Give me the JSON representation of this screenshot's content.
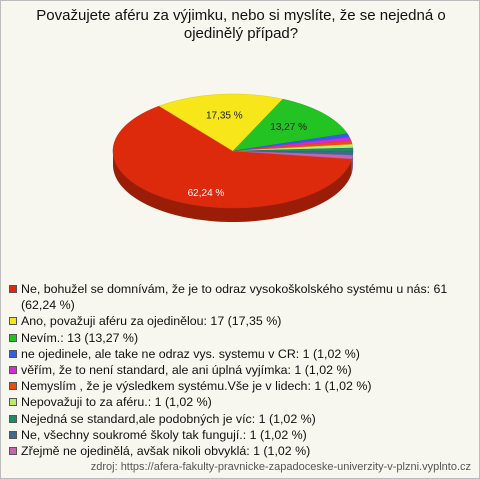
{
  "chart_data": {
    "type": "pie",
    "title": "Považujete aféru za výjimku, nebo si myslíte, že se nejedná o ojedinělý případ?",
    "categories": [
      "Ne, bohužel se domnívám, že je to odraz vysokoškolského systému u nás: 61 (62,24 %)",
      "Ano, považuji aféru za ojedinělou: 17 (17,35 %)",
      "Nevím.: 13 (13,27 %)",
      "ne ojedinele, ale take ne odraz vys. systemu v CR: 1 (1,02 %)",
      "věřím, že to není standard, ale ani úplná vyjímka: 1 (1,02 %)",
      "Nemyslím , že je výsledkem systému.Vše je v lidech: 1 (1,02 %)",
      "Nepovažuji to za aféru.: 1 (1,02 %)",
      "Nejedná se standard,ale podobných je víc: 1 (1,02 %)",
      "Ne, všechny soukromé školy tak fungují.: 1 (1,02 %)",
      "Zřejmě ne ojedinělá, avšak nikoli obvyklá: 1 (1,02 %)"
    ],
    "values": [
      62.24,
      17.35,
      13.27,
      1.02,
      1.02,
      1.02,
      1.02,
      1.02,
      1.02,
      1.02
    ],
    "value_labels": [
      "62,24 %",
      "17,35 %",
      "13,27 %",
      null,
      null,
      null,
      null,
      null,
      null,
      null
    ],
    "colors": [
      "#dd2a0c",
      "#f6e61a",
      "#22c322",
      "#2f5fe8",
      "#d62ad6",
      "#ee4a14",
      "#b8ec6a",
      "#1f8a66",
      "#3f6a90",
      "#c765b0"
    ],
    "source": "zdroj: https://afera-fakulty-pravnicke-zapadoceske-univerzity-v-plzni.vyplnto.cz"
  }
}
